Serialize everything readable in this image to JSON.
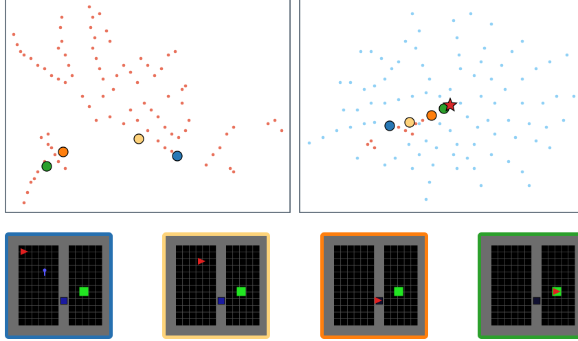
{
  "chart_data": [
    {
      "type": "scatter",
      "xlim": [
        8,
        422
      ],
      "ylim": [
        309,
        0
      ],
      "frame": true,
      "series": [
        {
          "color": "#e8705a",
          "x": [
            20,
            25,
            30,
            35,
            45,
            55,
            65,
            75,
            85,
            95,
            85,
            90,
            88,
            90,
            95,
            100,
            105,
            130,
            135,
            132,
            138,
            135,
            140,
            145,
            150,
            145,
            155,
            160,
            120,
            130,
            150,
            165,
            170,
            180,
            190,
            200,
            205,
            215,
            225,
            235,
            245,
            255,
            210,
            220,
            230,
            240,
            250,
            260,
            270,
            275,
            265,
            245,
            140,
            160,
            180,
            190,
            200,
            215,
            230,
            240,
            250,
            265,
            270,
            60,
            70,
            75,
            80,
            85,
            65,
            55,
            45,
            40,
            35,
            50,
            70,
            95,
            300,
            310,
            320,
            330,
            340,
            335,
            340,
            390,
            400,
            410
          ],
          "values": [
            50,
            65,
            75,
            80,
            85,
            95,
            100,
            110,
            115,
            120,
            70,
            60,
            40,
            25,
            80,
            95,
            110,
            10,
            25,
            40,
            55,
            70,
            85,
            100,
            115,
            20,
            45,
            60,
            140,
            155,
            140,
            130,
            110,
            95,
            105,
            120,
            85,
            95,
            110,
            100,
            80,
            75,
            150,
            160,
            170,
            185,
            195,
            200,
            190,
            175,
            150,
            140,
            175,
            170,
            180,
            160,
            175,
            190,
            205,
            215,
            220,
            130,
            125,
            200,
            210,
            215,
            225,
            235,
            235,
            250,
            265,
            280,
            295,
            260,
            195,
            245,
            240,
            225,
            215,
            195,
            185,
            245,
            250,
            180,
            175,
            190
          ]
        },
        {
          "color": "#2ca02c",
          "edgecolor": "#000000",
          "x": [
            68
          ],
          "values": [
            242
          ]
        },
        {
          "color": "#ff7f0e",
          "edgecolor": "#000000",
          "x": [
            92
          ],
          "values": [
            221
          ]
        },
        {
          "color": "#fed27a",
          "edgecolor": "#000000",
          "x": [
            202
          ],
          "values": [
            202
          ]
        },
        {
          "color": "#2878b5",
          "edgecolor": "#000000",
          "x": [
            258
          ],
          "values": [
            227
          ]
        }
      ]
    },
    {
      "type": "scatter",
      "xlim": [
        436,
        841
      ],
      "ylim": [
        309,
        0
      ],
      "frame": true,
      "series": [
        {
          "color": "#8fd0f5",
          "x": [
            600,
            610,
            605,
            615,
            625,
            590,
            580,
            570,
            560,
            545,
            530,
            510,
            495,
            540,
            525,
            555,
            660,
            665,
            668,
            670,
            685,
            715,
            705,
            700,
            690,
            760,
            745,
            730,
            715,
            800,
            780,
            760,
            735,
            825,
            810,
            790,
            760,
            720,
            700,
            820,
            795,
            770,
            740,
            710,
            800,
            780,
            750,
            720,
            695,
            770,
            760,
            740,
            715,
            690,
            700,
            690,
            680,
            665,
            665,
            660,
            620,
            625,
            630,
            635,
            600,
            610,
            620,
            560,
            575,
            595,
            450,
            470,
            490,
            510,
            530,
            545,
            500,
            520,
            540,
            560,
            580,
            600,
            620,
            640,
            655,
            670,
            680,
            640,
            655,
            610,
            520,
            835
          ],
          "values": [
            20,
            45,
            70,
            95,
            115,
            60,
            90,
            100,
            115,
            125,
            130,
            120,
            120,
            75,
            75,
            85,
            30,
            55,
            80,
            100,
            20,
            35,
            70,
            90,
            110,
            60,
            75,
            95,
            115,
            90,
            100,
            115,
            130,
            80,
            140,
            150,
            150,
            150,
            140,
            175,
            185,
            180,
            175,
            175,
            215,
            205,
            200,
            195,
            185,
            270,
            250,
            235,
            225,
            210,
            270,
            245,
            230,
            210,
            245,
            225,
            290,
            265,
            240,
            215,
            245,
            225,
            205,
            240,
            230,
            210,
            208,
            200,
            190,
            185,
            180,
            178,
            160,
            160,
            150,
            150,
            145,
            140,
            135,
            140,
            130,
            150,
            170,
            180,
            190,
            180,
            230,
            140
          ]
        },
        {
          "color": "#e8705a",
          "x": [
            540,
            535,
            545,
            580,
            590,
            605,
            615,
            600
          ],
          "values": [
            205,
            210,
            215,
            185,
            190,
            180,
            175,
            195
          ]
        },
        {
          "color": "#2878b5",
          "edgecolor": "#000000",
          "x": [
            567
          ],
          "values": [
            183
          ]
        },
        {
          "color": "#fed27a",
          "edgecolor": "#000000",
          "x": [
            596
          ],
          "values": [
            178
          ]
        },
        {
          "color": "#ff7f0e",
          "edgecolor": "#000000",
          "x": [
            628
          ],
          "values": [
            168
          ]
        },
        {
          "color": "#2ca02c",
          "edgecolor": "#000000",
          "x": [
            646
          ],
          "values": [
            158
          ]
        },
        {
          "color": "#d62728",
          "edgecolor": "#000000",
          "marker": "star",
          "x": [
            655
          ],
          "values": [
            153
          ]
        }
      ]
    }
  ]
}
